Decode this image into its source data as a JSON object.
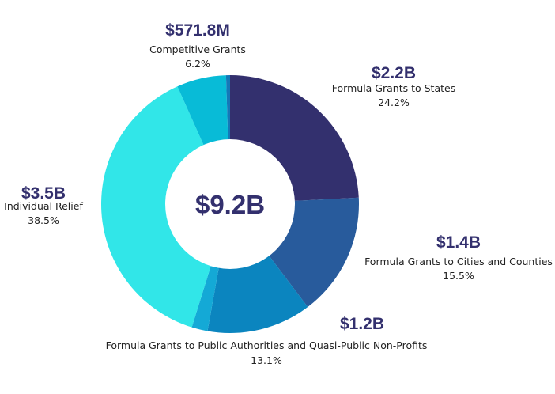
{
  "chart_data": {
    "type": "pie",
    "center_label": "$9.2B",
    "slices": [
      {
        "name": "Formula Grants to States",
        "amount": "$2.2B",
        "percent": 24.2,
        "percent_label": "24.2%",
        "color": "#33306e"
      },
      {
        "name": "Formula Grants to Cities and Counties",
        "amount": "$1.4B",
        "percent": 15.5,
        "percent_label": "15.5%",
        "color": "#285b9c"
      },
      {
        "name": "Formula Grants to Public Authorities and Quasi-Public Non-Profits",
        "amount": "$1.2B",
        "percent": 13.1,
        "percent_label": "13.1%",
        "color": "#0b85bf"
      },
      {
        "name": "Individual Relief",
        "amount": "$3.5B",
        "percent": 38.5,
        "percent_label": "38.5%",
        "color": "#31e6e8"
      },
      {
        "name": "Competitive Grants",
        "amount": "$571.8M",
        "percent": 6.2,
        "percent_label": "6.2%",
        "color": "#08bbd7"
      }
    ],
    "unlabeled_slices": [
      {
        "after": "Formula Grants to Public Authorities and Quasi-Public Non-Profits",
        "percent": 2.0,
        "color": "#14a9d6"
      },
      {
        "after": "Competitive Grants",
        "percent": 0.5,
        "color": "#1478b8"
      }
    ]
  }
}
